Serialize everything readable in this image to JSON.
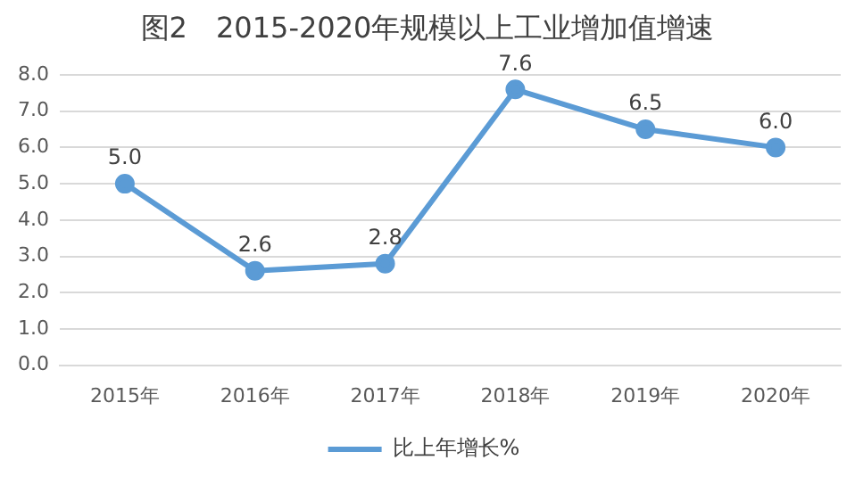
{
  "chart_data": {
    "type": "line",
    "title": "图2　2015-2020年规模以上工业增加值增速",
    "categories": [
      "2015年",
      "2016年",
      "2017年",
      "2018年",
      "2019年",
      "2020年"
    ],
    "series": [
      {
        "name": "比上年增长%",
        "color": "#5b9bd5",
        "values": [
          5.0,
          2.6,
          2.8,
          7.6,
          6.5,
          6.0
        ]
      }
    ],
    "ylim": [
      0,
      8
    ],
    "yticks": [
      {
        "value": 0,
        "label": "0.0"
      },
      {
        "value": 1,
        "label": "1.0"
      },
      {
        "value": 2,
        "label": "2.0"
      },
      {
        "value": 3,
        "label": "3.0"
      },
      {
        "value": 4,
        "label": "4.0"
      },
      {
        "value": 5,
        "label": "5.0"
      },
      {
        "value": 6,
        "label": "6.0"
      },
      {
        "value": 7,
        "label": "7.0"
      },
      {
        "value": 8,
        "label": "8.0"
      }
    ],
    "value_labels": [
      "5.0",
      "2.6",
      "2.8",
      "7.6",
      "6.5",
      "6.0"
    ],
    "grid": "y",
    "legend": "bottom",
    "marker": "circle",
    "line_style": "solid"
  }
}
